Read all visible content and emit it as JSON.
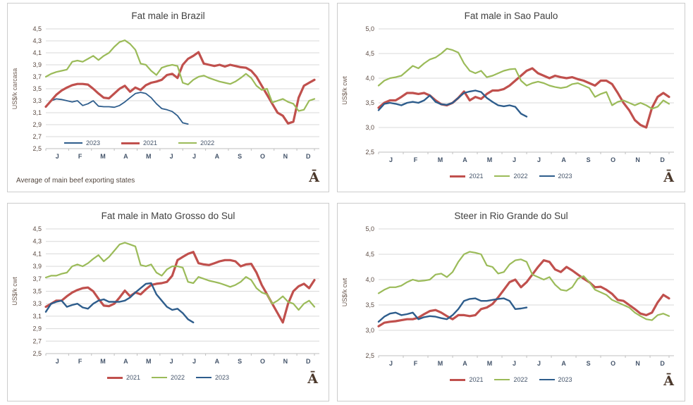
{
  "labels": {
    "watermark": "Ā",
    "decimal_separator": ","
  },
  "colors": {
    "s2021": "#C0504D",
    "s2022": "#9BBB59",
    "s2023": "#2E5D8C",
    "grid": "#D9D9D9",
    "axis": "#BFBFBF",
    "title": "#404040",
    "ytick": "#5B4A42",
    "month": "#44546A",
    "ylabel": "#6C5A50"
  },
  "chart_data": [
    {
      "type": "line",
      "title": "Fat male in Brazil",
      "ylabel": "US$/k carcasa",
      "ylim": [
        2.5,
        4.5
      ],
      "ytick_step": 0.2,
      "x_tick_labels": [
        "J",
        "F",
        "M",
        "A",
        "M",
        "J",
        "J",
        "A",
        "S",
        "O",
        "N",
        "D"
      ],
      "x_unit": "weeks",
      "grid": true,
      "legend_position": "inside-bottom-left",
      "footnote": "Average  of main beef exporting states",
      "series": [
        {
          "name": "2023",
          "color": "s2023",
          "width": 1.8,
          "values": [
            3.2,
            3.3,
            3.33,
            3.32,
            3.3,
            3.28,
            3.3,
            3.22,
            3.25,
            3.3,
            3.21,
            3.2,
            3.2,
            3.19,
            3.22,
            3.28,
            3.35,
            3.42,
            3.44,
            3.42,
            3.35,
            3.25,
            3.17,
            3.15,
            3.12,
            3.05,
            2.93,
            2.91
          ]
        },
        {
          "name": "2021",
          "color": "s2021",
          "width": 3.2,
          "values": [
            3.2,
            3.3,
            3.4,
            3.47,
            3.52,
            3.56,
            3.58,
            3.58,
            3.57,
            3.5,
            3.42,
            3.35,
            3.34,
            3.42,
            3.5,
            3.55,
            3.45,
            3.52,
            3.48,
            3.56,
            3.6,
            3.62,
            3.65,
            3.73,
            3.75,
            3.68,
            3.9,
            4.0,
            4.05,
            4.11,
            3.92,
            3.9,
            3.88,
            3.9,
            3.87,
            3.9,
            3.88,
            3.86,
            3.85,
            3.8,
            3.7,
            3.55,
            3.4,
            3.25,
            3.1,
            3.05,
            2.92,
            2.95,
            3.35,
            3.55,
            3.6,
            3.65
          ]
        },
        {
          "name": "2022",
          "color": "s2022",
          "width": 2.2,
          "values": [
            3.7,
            3.75,
            3.78,
            3.8,
            3.82,
            3.95,
            3.97,
            3.95,
            4.0,
            4.05,
            3.98,
            4.05,
            4.1,
            4.2,
            4.28,
            4.31,
            4.25,
            4.15,
            3.92,
            3.9,
            3.8,
            3.73,
            3.85,
            3.88,
            3.9,
            3.88,
            3.6,
            3.57,
            3.65,
            3.7,
            3.72,
            3.68,
            3.65,
            3.62,
            3.6,
            3.58,
            3.62,
            3.68,
            3.75,
            3.68,
            3.55,
            3.48,
            3.5,
            3.27,
            3.3,
            3.33,
            3.28,
            3.25,
            3.13,
            3.15,
            3.3,
            3.33
          ]
        }
      ]
    },
    {
      "type": "line",
      "title": "Fat male in Sao Paulo",
      "ylabel": "US$/k cwt",
      "ylim": [
        2.5,
        5.0
      ],
      "ytick_step": 0.5,
      "x_tick_labels": [
        "J",
        "F",
        "M",
        "A",
        "M",
        "J",
        "J",
        "A",
        "S",
        "O",
        "N",
        "D"
      ],
      "x_unit": "weeks",
      "grid": true,
      "legend_position": "below",
      "series": [
        {
          "name": "2021",
          "color": "s2021",
          "width": 3.2,
          "values": [
            3.4,
            3.5,
            3.55,
            3.55,
            3.62,
            3.7,
            3.7,
            3.68,
            3.7,
            3.65,
            3.55,
            3.47,
            3.45,
            3.5,
            3.6,
            3.73,
            3.55,
            3.62,
            3.58,
            3.68,
            3.75,
            3.75,
            3.78,
            3.85,
            3.95,
            4.05,
            4.15,
            4.2,
            4.1,
            4.05,
            4.0,
            4.05,
            4.02,
            4.0,
            4.02,
            3.98,
            3.95,
            3.9,
            3.85,
            3.95,
            3.95,
            3.88,
            3.7,
            3.5,
            3.35,
            3.15,
            3.05,
            3.0,
            3.4,
            3.62,
            3.7,
            3.62
          ]
        },
        {
          "name": "2022",
          "color": "s2022",
          "width": 2.2,
          "values": [
            3.85,
            3.95,
            4.0,
            4.02,
            4.05,
            4.15,
            4.25,
            4.2,
            4.3,
            4.38,
            4.42,
            4.5,
            4.6,
            4.57,
            4.52,
            4.3,
            4.15,
            4.1,
            4.15,
            4.02,
            4.05,
            4.1,
            4.15,
            4.18,
            4.19,
            3.95,
            3.85,
            3.9,
            3.93,
            3.9,
            3.85,
            3.82,
            3.8,
            3.82,
            3.88,
            3.9,
            3.85,
            3.8,
            3.62,
            3.68,
            3.72,
            3.45,
            3.52,
            3.55,
            3.5,
            3.45,
            3.5,
            3.45,
            3.38,
            3.42,
            3.55,
            3.48
          ]
        },
        {
          "name": "2023",
          "color": "s2023",
          "width": 2.4,
          "values": [
            3.35,
            3.48,
            3.5,
            3.48,
            3.45,
            3.5,
            3.52,
            3.5,
            3.55,
            3.65,
            3.52,
            3.47,
            3.46,
            3.5,
            3.6,
            3.7,
            3.73,
            3.75,
            3.72,
            3.6,
            3.52,
            3.45,
            3.43,
            3.45,
            3.42,
            3.28,
            3.22
          ]
        }
      ]
    },
    {
      "type": "line",
      "title": "Fat male in Mato Grosso do Sul",
      "ylabel": "US$/k cwt",
      "ylim": [
        2.5,
        4.5
      ],
      "ytick_step": 0.2,
      "x_tick_labels": [
        "J",
        "F",
        "M",
        "A",
        "M",
        "J",
        "J",
        "A",
        "S",
        "O",
        "N",
        "D"
      ],
      "x_unit": "weeks",
      "grid": true,
      "legend_position": "below",
      "series": [
        {
          "name": "2021",
          "color": "s2021",
          "width": 3.2,
          "values": [
            3.25,
            3.3,
            3.35,
            3.35,
            3.42,
            3.48,
            3.52,
            3.55,
            3.56,
            3.5,
            3.38,
            3.27,
            3.26,
            3.3,
            3.4,
            3.51,
            3.42,
            3.48,
            3.45,
            3.53,
            3.6,
            3.62,
            3.63,
            3.65,
            3.75,
            4.0,
            4.05,
            4.1,
            4.13,
            3.95,
            3.93,
            3.92,
            3.95,
            3.98,
            4.0,
            4.0,
            3.98,
            3.9,
            3.93,
            3.94,
            3.8,
            3.6,
            3.45,
            3.3,
            3.15,
            3.0,
            3.3,
            3.5,
            3.58,
            3.62,
            3.55,
            3.68
          ]
        },
        {
          "name": "2022",
          "color": "s2022",
          "width": 2.2,
          "values": [
            3.72,
            3.75,
            3.75,
            3.78,
            3.8,
            3.9,
            3.93,
            3.9,
            3.95,
            4.02,
            4.08,
            3.98,
            4.05,
            4.15,
            4.25,
            4.28,
            4.25,
            4.22,
            3.92,
            3.9,
            3.93,
            3.8,
            3.75,
            3.85,
            3.9,
            3.9,
            3.88,
            3.65,
            3.63,
            3.73,
            3.7,
            3.67,
            3.65,
            3.63,
            3.6,
            3.57,
            3.6,
            3.65,
            3.73,
            3.68,
            3.55,
            3.48,
            3.45,
            3.3,
            3.35,
            3.42,
            3.33,
            3.3,
            3.2,
            3.3,
            3.35,
            3.25
          ]
        },
        {
          "name": "2023",
          "color": "s2023",
          "width": 2.4,
          "values": [
            3.17,
            3.3,
            3.33,
            3.35,
            3.25,
            3.28,
            3.3,
            3.24,
            3.22,
            3.3,
            3.35,
            3.37,
            3.33,
            3.33,
            3.33,
            3.35,
            3.4,
            3.48,
            3.55,
            3.62,
            3.63,
            3.45,
            3.35,
            3.25,
            3.2,
            3.22,
            3.15,
            3.05,
            3.0
          ]
        }
      ]
    },
    {
      "type": "line",
      "title": "Steer  in Rio Grande do Sul",
      "ylabel": "US$/k cwt",
      "ylim": [
        2.5,
        5.0
      ],
      "ytick_step": 0.5,
      "x_tick_labels": [
        "J",
        "F",
        "M",
        "A",
        "M",
        "J",
        "J",
        "A",
        "S",
        "O",
        "N",
        "D"
      ],
      "x_unit": "weeks",
      "grid": true,
      "legend_position": "below",
      "series": [
        {
          "name": "2021",
          "color": "s2021",
          "width": 3.2,
          "values": [
            3.08,
            3.15,
            3.17,
            3.18,
            3.2,
            3.22,
            3.22,
            3.25,
            3.32,
            3.38,
            3.4,
            3.35,
            3.28,
            3.22,
            3.3,
            3.3,
            3.28,
            3.3,
            3.42,
            3.45,
            3.52,
            3.65,
            3.8,
            3.95,
            4.0,
            3.85,
            3.95,
            4.1,
            4.25,
            4.38,
            4.35,
            4.2,
            4.15,
            4.25,
            4.18,
            4.1,
            4.02,
            3.95,
            3.85,
            3.86,
            3.8,
            3.72,
            3.6,
            3.58,
            3.5,
            3.42,
            3.33,
            3.3,
            3.35,
            3.55,
            3.7,
            3.63
          ]
        },
        {
          "name": "2022",
          "color": "s2022",
          "width": 2.2,
          "values": [
            3.73,
            3.8,
            3.85,
            3.85,
            3.88,
            3.95,
            4.0,
            3.97,
            3.98,
            4.0,
            4.1,
            4.12,
            4.05,
            4.15,
            4.35,
            4.5,
            4.55,
            4.53,
            4.5,
            4.28,
            4.25,
            4.12,
            4.15,
            4.3,
            4.38,
            4.4,
            4.35,
            4.1,
            4.05,
            4.0,
            4.05,
            3.9,
            3.8,
            3.78,
            3.85,
            4.02,
            4.07,
            3.95,
            3.8,
            3.75,
            3.7,
            3.6,
            3.55,
            3.5,
            3.45,
            3.35,
            3.28,
            3.22,
            3.2,
            3.3,
            3.33,
            3.28
          ]
        },
        {
          "name": "2023",
          "color": "s2023",
          "width": 2.4,
          "values": [
            3.17,
            3.27,
            3.33,
            3.35,
            3.3,
            3.32,
            3.35,
            3.22,
            3.26,
            3.28,
            3.27,
            3.24,
            3.22,
            3.3,
            3.42,
            3.58,
            3.62,
            3.63,
            3.58,
            3.58,
            3.6,
            3.62,
            3.63,
            3.58,
            3.42,
            3.43,
            3.45
          ]
        }
      ]
    }
  ]
}
